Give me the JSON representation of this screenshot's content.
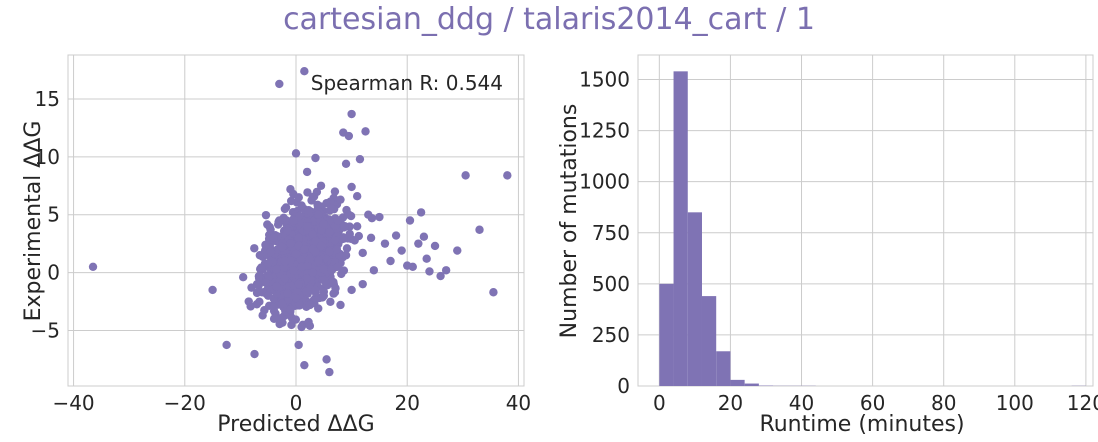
{
  "suptitle": "cartesian_ddg / talaris2014_cart / 1",
  "colors": {
    "accent": "#7f73b4",
    "title": "#7b6fb0",
    "grid": "#cccccc",
    "text": "#262626"
  },
  "chart_data": [
    {
      "type": "scatter",
      "xlabel": "Predicted ΔΔG",
      "ylabel": "Experimental ΔΔG",
      "xlim": [
        -41,
        41
      ],
      "ylim": [
        -9.8,
        18.8
      ],
      "xticks": [
        -40,
        -20,
        0,
        20,
        40
      ],
      "yticks": [
        -5,
        0,
        5,
        10,
        15
      ],
      "xtick_labels": [
        "−40",
        "−20",
        "0",
        "20",
        "40"
      ],
      "ytick_labels": [
        "−5",
        "0",
        "5",
        "10",
        "15"
      ],
      "grid": true,
      "annotation": "Spearman R: 0.544",
      "annotation_position": "top-right",
      "points": [
        [
          -36.5,
          0.5
        ],
        [
          -15,
          -1.5
        ],
        [
          -9.5,
          -0.4
        ],
        [
          -8.5,
          -2.5
        ],
        [
          -8,
          -1.3
        ],
        [
          -7.5,
          2.1
        ],
        [
          -7,
          -1
        ],
        [
          -6.5,
          1.5
        ],
        [
          -6,
          -3.7
        ],
        [
          -5.5,
          2.4
        ],
        [
          -5,
          -2
        ],
        [
          -5,
          0.8
        ],
        [
          -4.5,
          1.8
        ],
        [
          -4,
          -3
        ],
        [
          -4,
          3
        ],
        [
          -3.5,
          0.3
        ],
        [
          -3.5,
          -1.2
        ],
        [
          -3,
          4.5
        ],
        [
          -3,
          16.3
        ],
        [
          -2.5,
          2.2
        ],
        [
          -2.5,
          -2.7
        ],
        [
          -2,
          1
        ],
        [
          -2,
          -0.5
        ],
        [
          -2,
          5.5
        ],
        [
          -1.5,
          3.6
        ],
        [
          -1.5,
          -1.8
        ],
        [
          -1,
          7.2
        ],
        [
          -1,
          2.5
        ],
        [
          -1,
          -3.2
        ],
        [
          -0.5,
          0.2
        ],
        [
          -0.5,
          4.5
        ],
        [
          0,
          1.6
        ],
        [
          0,
          -2.2
        ],
        [
          0,
          10.3
        ],
        [
          0.5,
          3
        ],
        [
          0.5,
          -1
        ],
        [
          0.5,
          6.5
        ],
        [
          1,
          0.5
        ],
        [
          1,
          -4.7
        ],
        [
          1,
          5.8
        ],
        [
          1.5,
          2
        ],
        [
          1.5,
          -8
        ],
        [
          1.5,
          17.4
        ],
        [
          2,
          4
        ],
        [
          2,
          -0.5
        ],
        [
          2,
          8.7
        ],
        [
          2.5,
          1.2
        ],
        [
          2.5,
          -2.8
        ],
        [
          2.5,
          -4.6
        ],
        [
          3,
          3.3
        ],
        [
          3,
          6.5
        ],
        [
          3,
          0
        ],
        [
          3.5,
          2.7
        ],
        [
          3.5,
          -1.5
        ],
        [
          3.5,
          9.9
        ],
        [
          4,
          5
        ],
        [
          4,
          1
        ],
        [
          4,
          -3.1
        ],
        [
          4.5,
          7.5
        ],
        [
          4.5,
          2.3
        ],
        [
          5,
          0.3
        ],
        [
          5,
          4.2
        ],
        [
          5,
          -2
        ],
        [
          5.5,
          6
        ],
        [
          5.5,
          -7.5
        ],
        [
          6,
          1.8
        ],
        [
          6,
          3.5
        ],
        [
          6,
          -8.6
        ],
        [
          6.5,
          5.5
        ],
        [
          6.5,
          -0.8
        ],
        [
          7,
          2.8
        ],
        [
          7,
          7
        ],
        [
          7.5,
          4.5
        ],
        [
          7.5,
          0.5
        ],
        [
          8,
          6.3
        ],
        [
          8,
          -2.8
        ],
        [
          8.5,
          3
        ],
        [
          8.5,
          12.1
        ],
        [
          9,
          9.4
        ],
        [
          9,
          1.5
        ],
        [
          9.5,
          11.8
        ],
        [
          9.5,
          5
        ],
        [
          10,
          13.7
        ],
        [
          10,
          7.4
        ],
        [
          10,
          -1.5
        ],
        [
          11,
          4
        ],
        [
          11,
          6.6
        ],
        [
          11.5,
          9.8
        ],
        [
          12,
          1.7
        ],
        [
          12,
          -1
        ],
        [
          12.5,
          12.2
        ],
        [
          13,
          5
        ],
        [
          13.5,
          3
        ],
        [
          14,
          0.2
        ],
        [
          15,
          4.8
        ],
        [
          16,
          2.5
        ],
        [
          17,
          1
        ],
        [
          18,
          3.2
        ],
        [
          19,
          1.9
        ],
        [
          20,
          0.6
        ],
        [
          20.5,
          4.5
        ],
        [
          21,
          0.5
        ],
        [
          22,
          2.5
        ],
        [
          22.5,
          5.2
        ],
        [
          23,
          3.1
        ],
        [
          23.5,
          1.2
        ],
        [
          24,
          0.1
        ],
        [
          25,
          2.3
        ],
        [
          26,
          -0.3
        ],
        [
          27,
          0.2
        ],
        [
          29,
          1.9
        ],
        [
          30.5,
          8.4
        ],
        [
          33,
          3.7
        ],
        [
          35.5,
          -1.7
        ],
        [
          38,
          8.4
        ]
      ]
    },
    {
      "type": "bar",
      "xlabel": "Runtime (minutes)",
      "ylabel": "Number of mutations",
      "xlim": [
        -6,
        122
      ],
      "ylim": [
        0,
        1620
      ],
      "xticks": [
        0,
        20,
        40,
        60,
        80,
        100,
        120
      ],
      "yticks": [
        0,
        250,
        500,
        750,
        1000,
        1250,
        1500
      ],
      "grid": true,
      "bin_edges": [
        0,
        4,
        8,
        12,
        16,
        20,
        24,
        28,
        32,
        36,
        40,
        44,
        48,
        52,
        56,
        60,
        64,
        68,
        72,
        76,
        80,
        84,
        88,
        92,
        96,
        100,
        104,
        108,
        112,
        116,
        120
      ],
      "values": [
        500,
        1540,
        850,
        440,
        170,
        30,
        12,
        2,
        1,
        1,
        1,
        0,
        0,
        0,
        0,
        0,
        0,
        0,
        0,
        0,
        0,
        0,
        0,
        0,
        0,
        0,
        0,
        0,
        0,
        1
      ]
    }
  ]
}
